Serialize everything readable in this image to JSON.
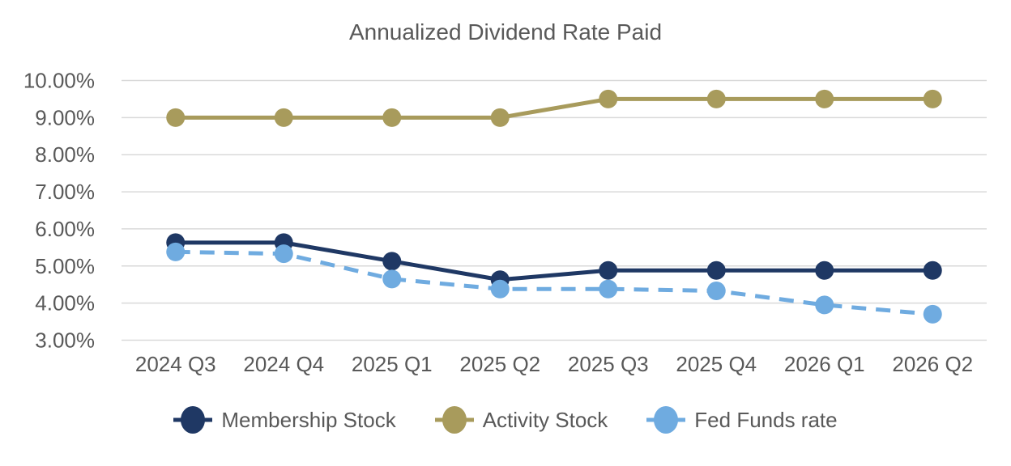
{
  "chart_data": {
    "type": "line",
    "title": "Annualized Dividend Rate Paid",
    "categories": [
      "2024 Q3",
      "2024 Q4",
      "2025 Q1",
      "2025 Q2",
      "2025 Q3",
      "2025 Q4",
      "2026 Q1",
      "2026 Q2"
    ],
    "series": [
      {
        "id": "membership-stock",
        "name": "Membership Stock",
        "color": "#1F3864",
        "line_style": "solid",
        "dashed": false,
        "values": [
          5.63,
          5.63,
          5.13,
          4.63,
          4.88,
          4.88,
          4.88,
          4.88
        ]
      },
      {
        "id": "activity-stock",
        "name": "Activity Stock",
        "color": "#A89B5C",
        "line_style": "solid",
        "dashed": false,
        "values": [
          9.0,
          9.0,
          9.0,
          9.0,
          9.5,
          9.5,
          9.5,
          9.5
        ]
      },
      {
        "id": "fed-funds-rate",
        "name": "Fed Funds rate",
        "color": "#6FABE0",
        "line_style": "dashed",
        "dashed": true,
        "values": [
          5.38,
          5.33,
          4.65,
          4.38,
          4.38,
          4.33,
          3.95,
          3.7
        ]
      }
    ],
    "y_axis": {
      "format": "percent",
      "range": [
        3,
        10
      ],
      "ticks": [
        {
          "label": "10.00%",
          "value": 10
        },
        {
          "label": "9.00%",
          "value": 9
        },
        {
          "label": "8.00%",
          "value": 8
        },
        {
          "label": "7.00%",
          "value": 7
        },
        {
          "label": "6.00%",
          "value": 6
        },
        {
          "label": "5.00%",
          "value": 5
        },
        {
          "label": "4.00%",
          "value": 4
        },
        {
          "label": "3.00%",
          "value": 3
        }
      ]
    },
    "xlabel": "",
    "ylabel": "",
    "grid": true,
    "legend_position": "bottom",
    "colors": {
      "grid": "#D9D9D9",
      "text": "#595959"
    }
  }
}
